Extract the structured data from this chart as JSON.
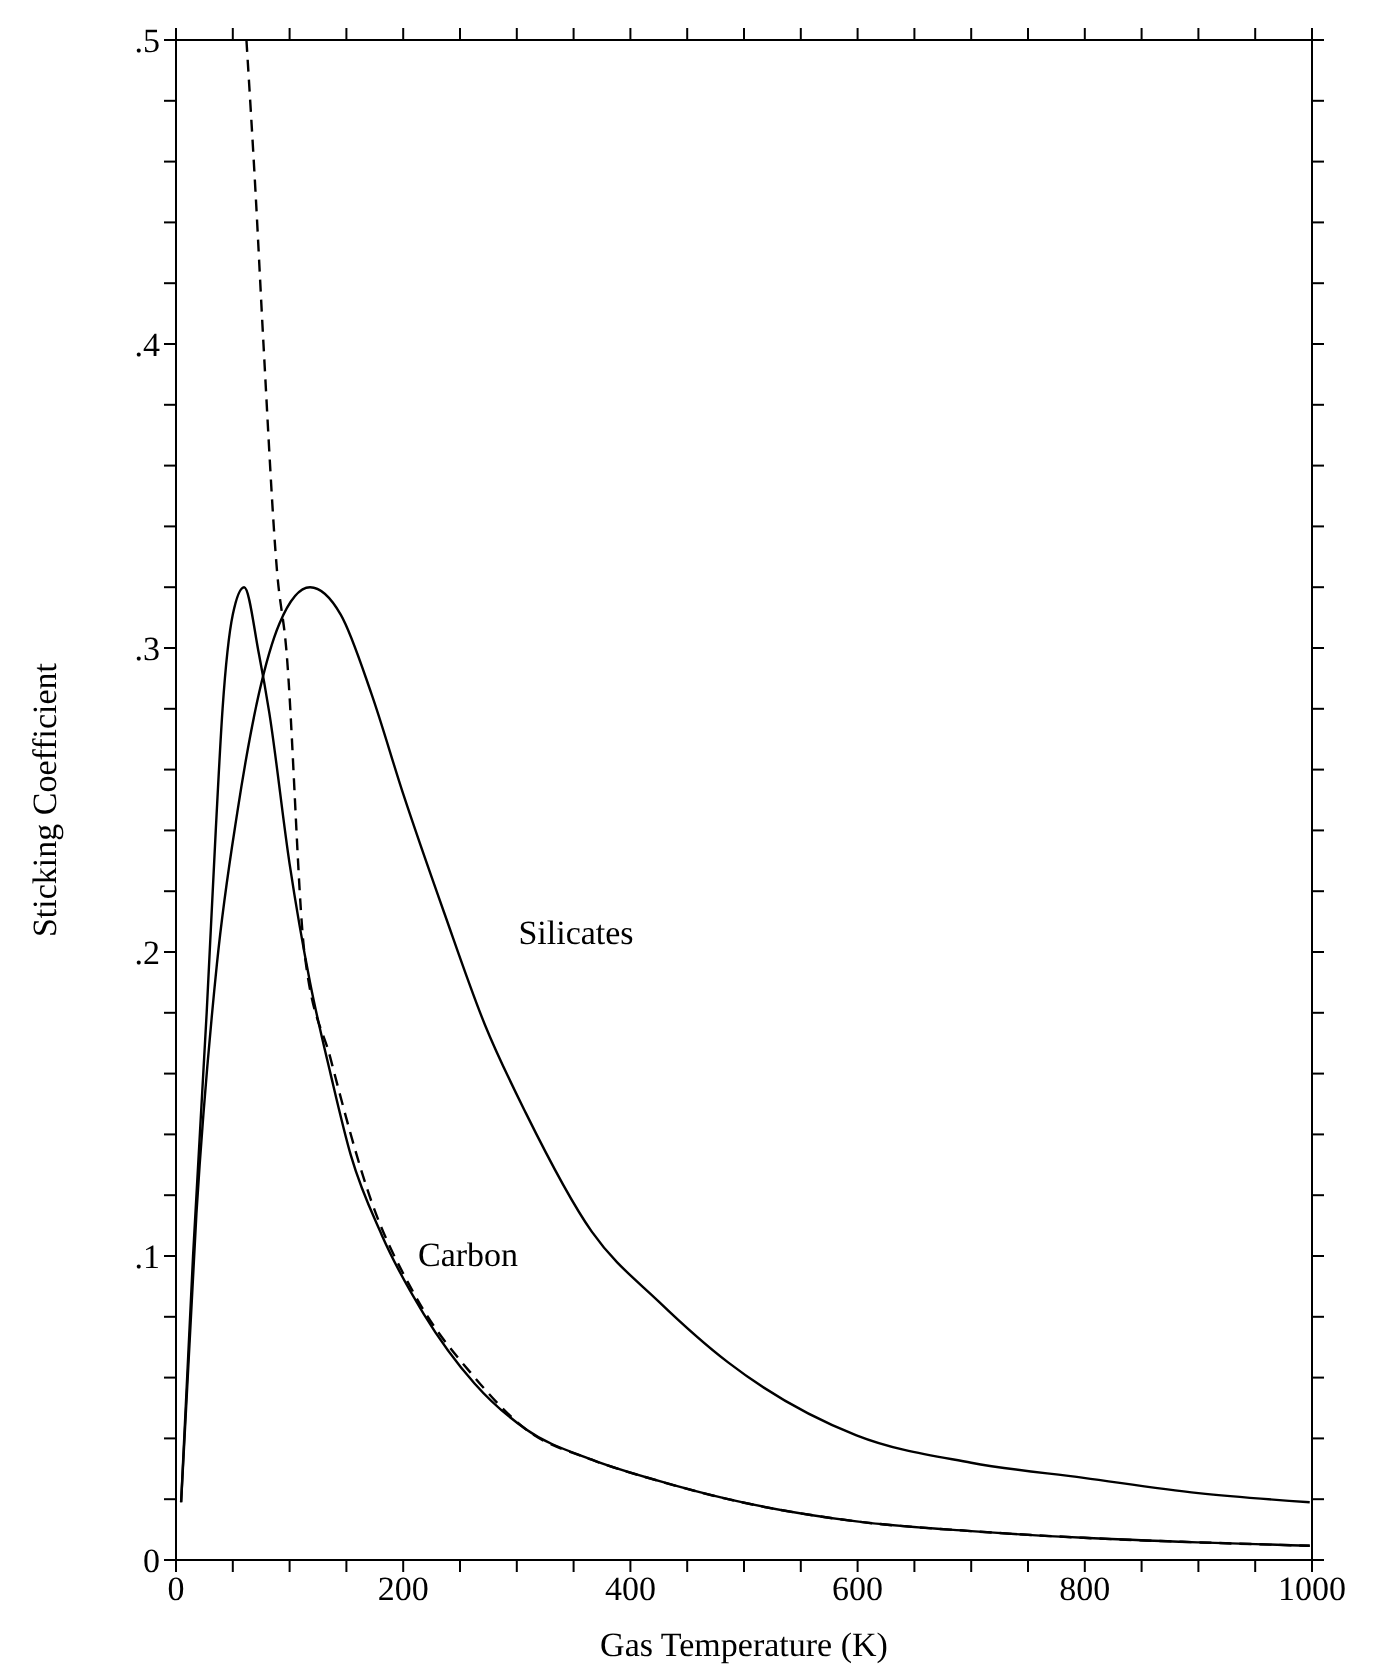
{
  "chart_data": {
    "type": "line",
    "xlabel": "Gas Temperature (K)",
    "ylabel": "Sticking Coefficient",
    "xlim": [
      0,
      1000
    ],
    "ylim": [
      0,
      0.5
    ],
    "xticks": [
      0,
      {
        "value": 50,
        "label": null
      },
      {
        "value": 100,
        "label": null
      },
      {
        "value": 150,
        "label": null
      },
      200,
      {
        "value": 250,
        "label": null
      },
      {
        "value": 300,
        "label": null
      },
      {
        "value": 350,
        "label": null
      },
      400,
      {
        "value": 450,
        "label": null
      },
      {
        "value": 500,
        "label": null
      },
      {
        "value": 550,
        "label": null
      },
      600,
      {
        "value": 650,
        "label": null
      },
      {
        "value": 700,
        "label": null
      },
      {
        "value": 750,
        "label": null
      },
      800,
      {
        "value": 850,
        "label": null
      },
      {
        "value": 900,
        "label": null
      },
      {
        "value": 950,
        "label": null
      },
      1000
    ],
    "yticks": [
      0,
      {
        "value": 0.02,
        "label": null
      },
      {
        "value": 0.04,
        "label": null
      },
      {
        "value": 0.06,
        "label": null
      },
      {
        "value": 0.08,
        "label": null
      },
      {
        "value": 0.1,
        "label": ".1"
      },
      {
        "value": 0.12,
        "label": null
      },
      {
        "value": 0.14,
        "label": null
      },
      {
        "value": 0.16,
        "label": null
      },
      {
        "value": 0.18,
        "label": null
      },
      {
        "value": 0.2,
        "label": ".2"
      },
      {
        "value": 0.22,
        "label": null
      },
      {
        "value": 0.24,
        "label": null
      },
      {
        "value": 0.26,
        "label": null
      },
      {
        "value": 0.28,
        "label": null
      },
      {
        "value": 0.3,
        "label": ".3"
      },
      {
        "value": 0.32,
        "label": null
      },
      {
        "value": 0.34,
        "label": null
      },
      {
        "value": 0.36,
        "label": null
      },
      {
        "value": 0.38,
        "label": null
      },
      {
        "value": 0.4,
        "label": ".4"
      },
      {
        "value": 0.42,
        "label": null
      },
      {
        "value": 0.44,
        "label": null
      },
      {
        "value": 0.46,
        "label": null
      },
      {
        "value": 0.48,
        "label": null
      },
      {
        "value": 0.5,
        "label": ".5"
      }
    ],
    "marker": "none",
    "series": [
      {
        "name": "Carbon",
        "color": "#000000",
        "line_style": "solid",
        "x": [
          4.5,
          15,
          27,
          35,
          41,
          50,
          60,
          73,
          82,
          100,
          118,
          136,
          154,
          181,
          218,
          263,
          308,
          366,
          425,
          486,
          599,
          700,
          799,
          900,
          998
        ],
        "values": [
          0.019,
          0.1,
          0.18,
          0.24,
          0.28,
          0.311,
          0.32,
          0.298,
          0.279,
          0.229,
          0.19,
          0.16,
          0.133,
          0.107,
          0.081,
          0.058,
          0.043,
          0.033,
          0.026,
          0.02,
          0.0127,
          0.0095,
          0.0073,
          0.0058,
          0.0047
        ]
      },
      {
        "name": "Silicates",
        "color": "#000000",
        "line_style": "solid",
        "x": [
          4.5,
          18,
          36,
          54,
          73,
          91,
          118,
          145,
          172,
          200,
          236,
          272,
          308,
          366,
          425,
          486,
          599,
          700,
          799,
          900,
          998
        ],
        "values": [
          0.019,
          0.114,
          0.196,
          0.246,
          0.285,
          0.308,
          0.32,
          0.311,
          0.285,
          0.252,
          0.213,
          0.176,
          0.147,
          0.108,
          0.085,
          0.065,
          0.041,
          0.032,
          0.027,
          0.022,
          0.019
        ]
      },
      {
        "color": "#000000",
        "line_style": "dashed",
        "x": [
          62,
          70,
          77,
          89,
          97,
          113,
          136,
          172,
          209,
          263,
          308,
          366,
          425,
          486,
          599,
          700,
          799,
          900,
          998
        ],
        "values": [
          0.5,
          0.45,
          0.4,
          0.325,
          0.3,
          0.2,
          0.165,
          0.118,
          0.088,
          0.06,
          0.043,
          0.033,
          0.026,
          0.02,
          0.0127,
          0.0095,
          0.0073,
          0.0058,
          0.0047
        ]
      }
    ]
  }
}
